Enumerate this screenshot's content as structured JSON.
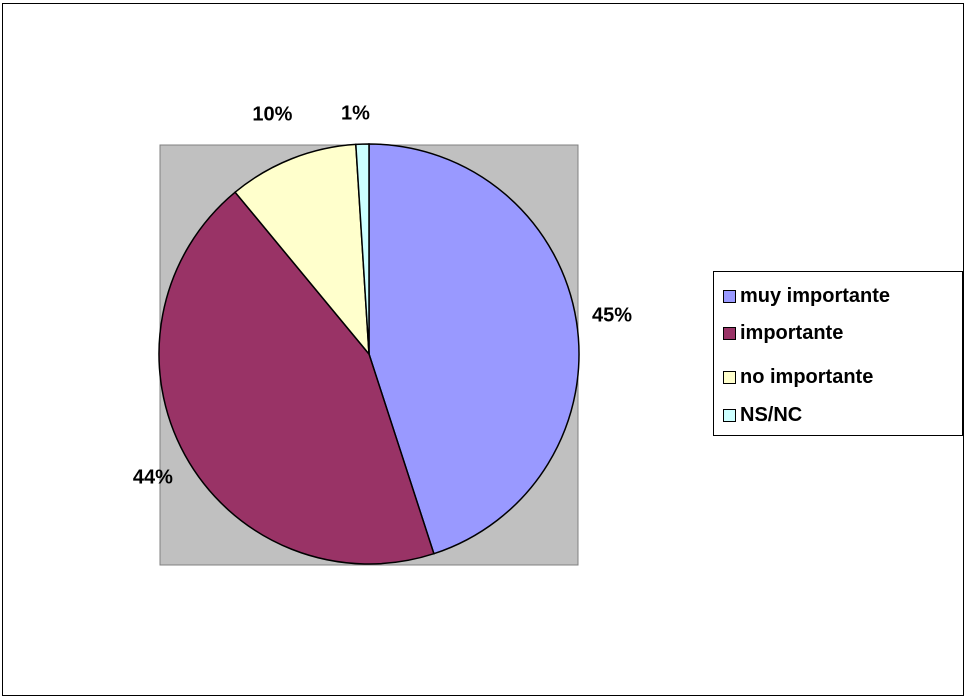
{
  "chart_data": {
    "type": "pie",
    "title": "",
    "categories": [
      "muy importante",
      "importante",
      "no importante",
      "NS/NC"
    ],
    "values": [
      45,
      44,
      10,
      1
    ],
    "labels": [
      "45%",
      "44%",
      "10%",
      "1%"
    ],
    "colors": [
      "#9999ff",
      "#993366",
      "#ffffcc",
      "#ccffff"
    ],
    "legend_position": "right"
  }
}
